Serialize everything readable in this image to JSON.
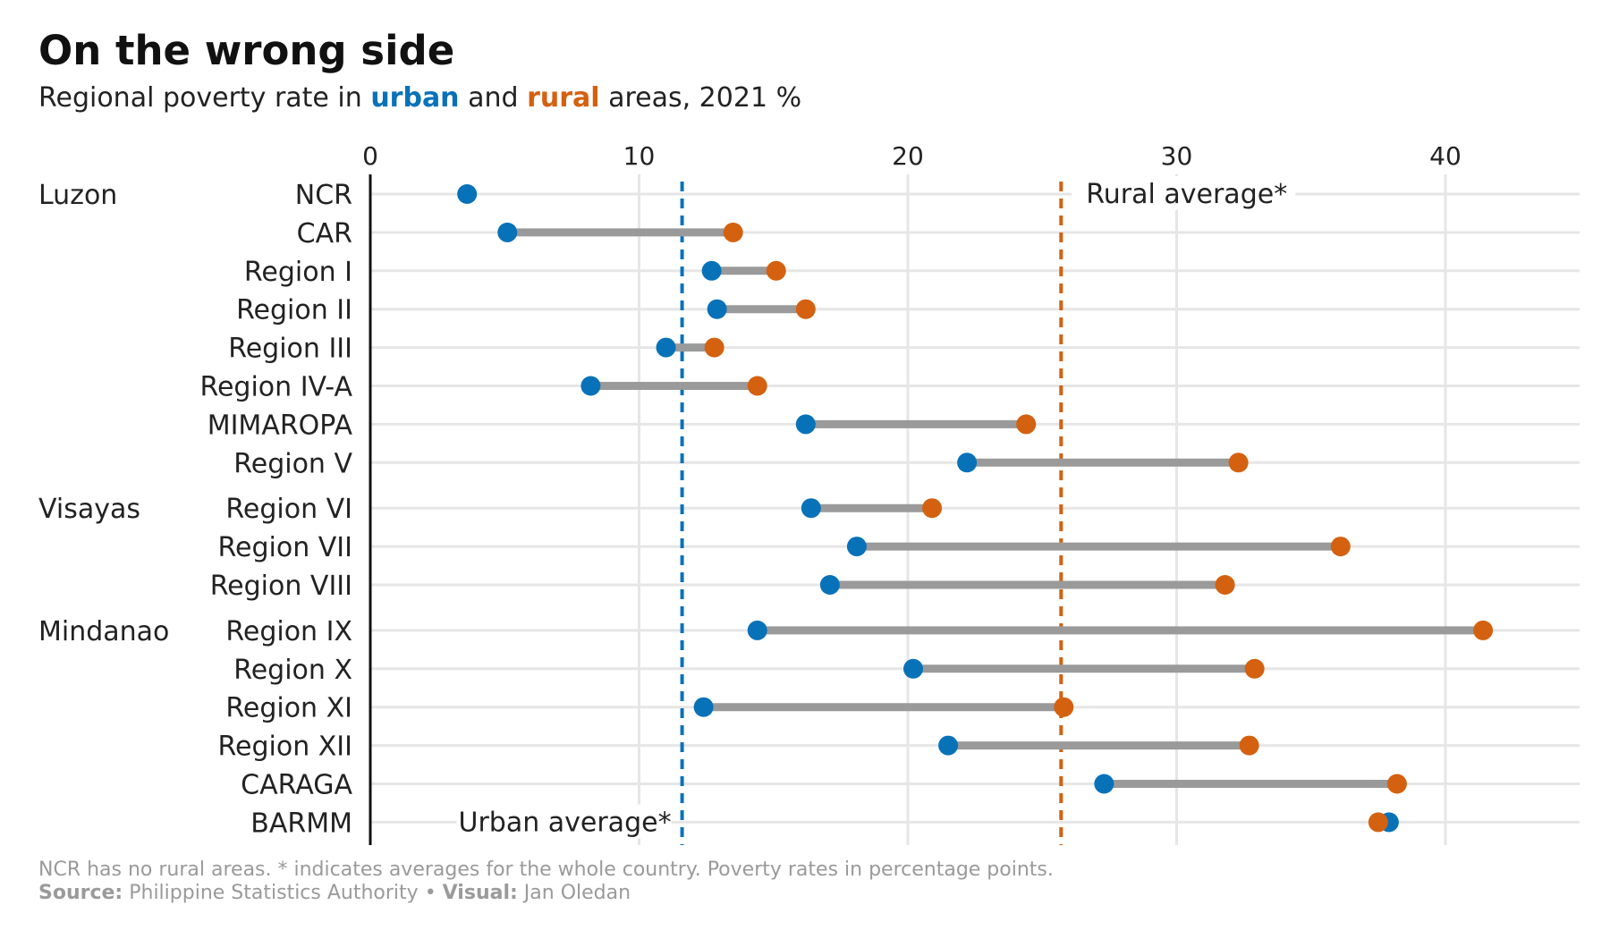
{
  "title": "On the wrong side",
  "subtitle": {
    "prefix": "Regional poverty rate in ",
    "urban_word": "urban",
    "middle": " and ",
    "rural_word": "rural",
    "suffix": " areas, 2021 %"
  },
  "colors": {
    "urban": "#0872b9",
    "rural": "#d4610f",
    "connector": "#9a9a9a",
    "grid": "#e6e6e6",
    "footer": "#9a9a9a"
  },
  "footer": {
    "note": "NCR has no rural areas. * indicates averages for the whole country. Poverty rates in percentage points.",
    "source_label": "Source:",
    "source_value": "Philippine Statistics Authority",
    "separator": "•",
    "visual_label": "Visual:",
    "visual_value": "Jan Oledan"
  },
  "chart_data": {
    "type": "dumbbell",
    "xlim": [
      0,
      45
    ],
    "x_ticks": [
      0,
      10,
      20,
      30,
      40
    ],
    "grid": true,
    "series": [
      {
        "name": "urban"
      },
      {
        "name": "rural"
      }
    ],
    "averages": [
      {
        "label": "Rural average*",
        "value": 25.7,
        "series": "rural"
      },
      {
        "label": "Urban average*",
        "value": 11.6,
        "series": "urban"
      }
    ],
    "groups": [
      {
        "name": "Luzon",
        "regions": [
          {
            "name": "NCR",
            "urban": 3.6,
            "rural": null
          },
          {
            "name": "CAR",
            "urban": 5.1,
            "rural": 13.5
          },
          {
            "name": "Region I",
            "urban": 12.7,
            "rural": 15.1
          },
          {
            "name": "Region II",
            "urban": 12.9,
            "rural": 16.2
          },
          {
            "name": "Region III",
            "urban": 11.0,
            "rural": 12.8
          },
          {
            "name": "Region IV-A",
            "urban": 8.2,
            "rural": 14.4
          },
          {
            "name": "MIMAROPA",
            "urban": 16.2,
            "rural": 24.4
          },
          {
            "name": "Region V",
            "urban": 22.2,
            "rural": 32.3
          }
        ]
      },
      {
        "name": "Visayas",
        "regions": [
          {
            "name": "Region VI",
            "urban": 16.4,
            "rural": 20.9
          },
          {
            "name": "Region VII",
            "urban": 18.1,
            "rural": 36.1
          },
          {
            "name": "Region VIII",
            "urban": 17.1,
            "rural": 31.8
          }
        ]
      },
      {
        "name": "Mindanao",
        "regions": [
          {
            "name": "Region IX",
            "urban": 14.4,
            "rural": 41.4
          },
          {
            "name": "Region X",
            "urban": 20.2,
            "rural": 32.9
          },
          {
            "name": "Region XI",
            "urban": 12.4,
            "rural": 25.8
          },
          {
            "name": "Region XII",
            "urban": 21.5,
            "rural": 32.7
          },
          {
            "name": "CARAGA",
            "urban": 27.3,
            "rural": 38.2
          },
          {
            "name": "BARMM",
            "urban": 37.9,
            "rural": 37.5
          }
        ]
      }
    ]
  }
}
